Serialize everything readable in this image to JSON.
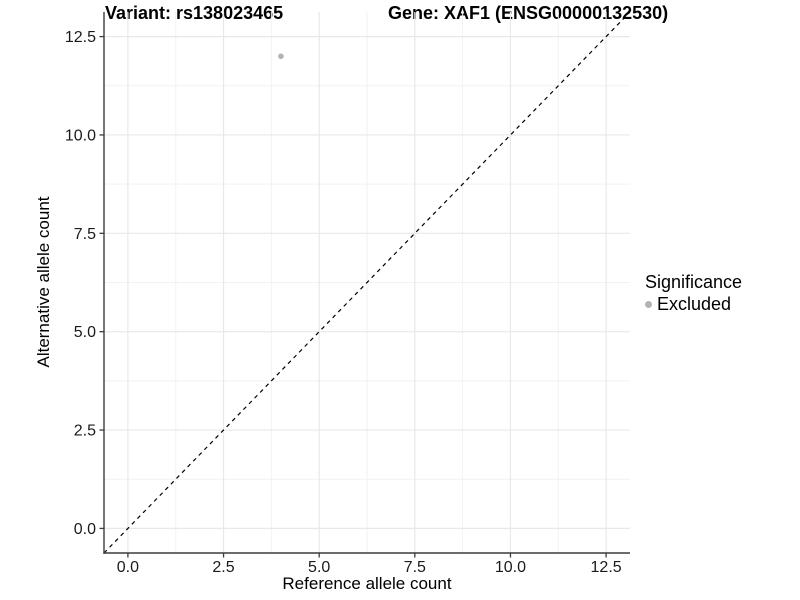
{
  "chart_data": {
    "type": "scatter",
    "title_left": "Variant: rs138023465",
    "title_right": "Gene: XAF1 (ENSG00000132530)",
    "xlabel": "Reference allele count",
    "ylabel": "Alternative allele count",
    "xlim": [
      -0.625,
      13.125
    ],
    "ylim": [
      -0.625,
      13.125
    ],
    "x_ticks": [
      0,
      2.5,
      5,
      7.5,
      10,
      12.5
    ],
    "x_tick_labels": [
      "0.0",
      "2.5",
      "5.0",
      "7.5",
      "10.0",
      "12.5"
    ],
    "x_minor_ticks": [
      1.25,
      3.75,
      6.25,
      8.75,
      11.25
    ],
    "y_ticks": [
      0,
      2.5,
      5,
      7.5,
      10,
      12.5
    ],
    "y_tick_labels": [
      "0.0",
      "2.5",
      "5.0",
      "7.5",
      "10.0",
      "12.5"
    ],
    "y_minor_ticks": [
      1.25,
      3.75,
      6.25,
      8.75,
      11.25
    ],
    "grid": true,
    "series": [
      {
        "name": "Excluded",
        "marker_color": "#b3b3b3",
        "points": [
          {
            "x": 4,
            "y": 12
          }
        ]
      }
    ],
    "reference_line": {
      "shape": "identity y=x",
      "style": "dashed",
      "color": "#000000"
    },
    "legend": {
      "title": "Significance",
      "position": "right",
      "items": [
        {
          "label": "Excluded",
          "color": "#b3b3b3"
        }
      ]
    },
    "colors": {
      "background": "#ffffff",
      "grid_major": "#e8e8e8",
      "grid_minor": "#f2f2f2",
      "axis_line": "#3c3c3c",
      "tick_label": "#1a1a1a"
    }
  }
}
